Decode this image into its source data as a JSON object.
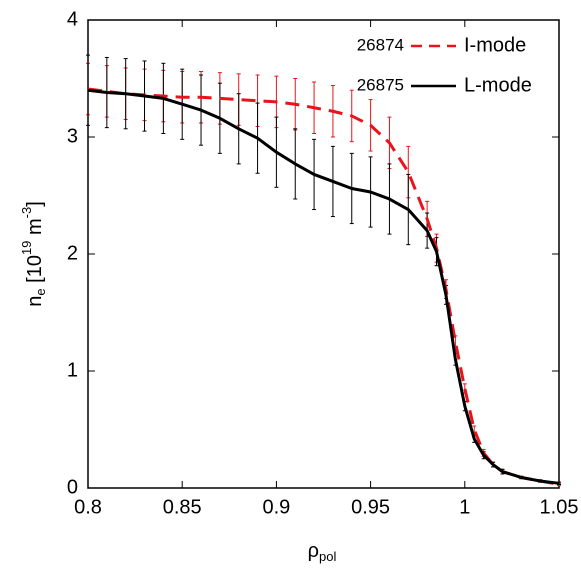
{
  "chart_data": {
    "type": "line",
    "x_label": {
      "main": "ρ",
      "sub": "pol"
    },
    "y_label": {
      "main": "n",
      "sub": "e",
      "open": " [10",
      "exp": "19",
      "unit": " m",
      "unit_exp": "-3",
      "close": "]"
    },
    "x": [
      0.8,
      0.81,
      0.82,
      0.83,
      0.84,
      0.85,
      0.86,
      0.87,
      0.88,
      0.89,
      0.9,
      0.91,
      0.92,
      0.93,
      0.94,
      0.95,
      0.96,
      0.97,
      0.98,
      0.985,
      0.99,
      0.995,
      1.0,
      1.005,
      1.01,
      1.015,
      1.02,
      1.03,
      1.04,
      1.05
    ],
    "series": [
      {
        "name": "I-mode",
        "shot": "26874",
        "color": "#e8141c",
        "dashed": true,
        "values": [
          3.41,
          3.39,
          3.37,
          3.36,
          3.35,
          3.34,
          3.34,
          3.33,
          3.32,
          3.31,
          3.3,
          3.28,
          3.25,
          3.22,
          3.18,
          3.1,
          2.95,
          2.7,
          2.3,
          2.05,
          1.7,
          1.25,
          0.85,
          0.5,
          0.3,
          0.2,
          0.14,
          0.09,
          0.06,
          0.03
        ],
        "errors": [
          0.22,
          0.22,
          0.22,
          0.22,
          0.22,
          0.22,
          0.22,
          0.22,
          0.22,
          0.22,
          0.22,
          0.22,
          0.22,
          0.22,
          0.22,
          0.22,
          0.22,
          0.22,
          0.15,
          0.12,
          0.08,
          0.05,
          0.04,
          0.03,
          0.03,
          0.02,
          0.02,
          0.01,
          0.01,
          0.01
        ]
      },
      {
        "name": "L-mode",
        "shot": "26875",
        "color": "#000000",
        "dashed": false,
        "values": [
          3.4,
          3.38,
          3.37,
          3.35,
          3.33,
          3.28,
          3.23,
          3.16,
          3.07,
          2.99,
          2.87,
          2.77,
          2.68,
          2.62,
          2.56,
          2.53,
          2.47,
          2.38,
          2.2,
          2.02,
          1.65,
          1.1,
          0.7,
          0.42,
          0.28,
          0.2,
          0.14,
          0.09,
          0.06,
          0.04
        ],
        "errors": [
          0.3,
          0.3,
          0.3,
          0.3,
          0.3,
          0.3,
          0.3,
          0.3,
          0.3,
          0.3,
          0.3,
          0.3,
          0.3,
          0.3,
          0.3,
          0.3,
          0.3,
          0.3,
          0.15,
          0.12,
          0.08,
          0.05,
          0.04,
          0.03,
          0.03,
          0.02,
          0.02,
          0.01,
          0.01,
          0.01
        ]
      }
    ],
    "xlim": [
      0.8,
      1.05
    ],
    "xticks": [
      0.8,
      0.85,
      0.9,
      0.95,
      1,
      1.05
    ],
    "ylim": [
      0,
      4
    ],
    "yticks": [
      0,
      1,
      2,
      3,
      4
    ],
    "grid": false
  }
}
